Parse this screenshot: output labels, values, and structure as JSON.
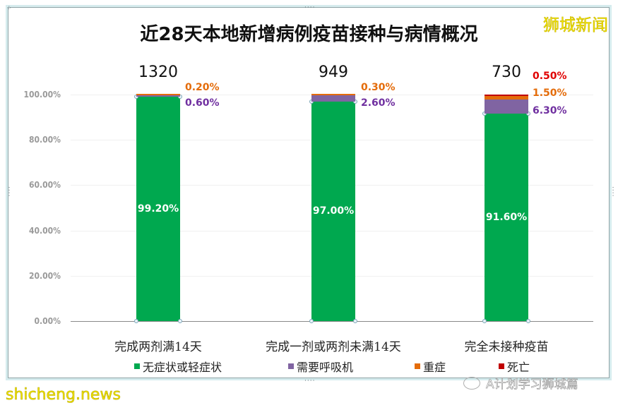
{
  "header": {
    "title": "近28天本地新增病例疫苗接种与病情概况",
    "brand": "狮城新闻"
  },
  "watermarks": {
    "bottom_left": "shicheng.news",
    "bottom_right": "A计划学习狮城篇"
  },
  "colors": {
    "asymptomatic_mild": "#00a84f",
    "ventilator": "#8064a2",
    "severe": "#e46c0a",
    "death": "#c00000",
    "axis_text": "#9a9a9a",
    "label_severe": "#e46c0a",
    "label_ventilator": "#7030a0",
    "label_death": "#e00000"
  },
  "chart_data": {
    "type": "bar",
    "stacked": true,
    "percent_stacked": true,
    "title": "近28天本地新增病例疫苗接种与病情概况",
    "xlabel": "",
    "ylabel": "",
    "ylim": [
      0,
      100
    ],
    "yticks": [
      "0.00%",
      "20.00%",
      "40.00%",
      "60.00%",
      "80.00%",
      "100.00%"
    ],
    "grid": true,
    "legend_position": "bottom",
    "categories": [
      "完成两剂满14天",
      "完成一剂或两剂未满14天",
      "完全未接种疫苗"
    ],
    "totals": [
      "1320",
      "949",
      "730"
    ],
    "series": [
      {
        "name": "无症状或轻症状",
        "values": [
          99.2,
          97.0,
          91.6
        ],
        "labels": [
          "99.20%",
          "97.00%",
          "91.60%"
        ]
      },
      {
        "name": "需要呼吸机",
        "values": [
          0.6,
          2.6,
          6.3
        ],
        "labels": [
          "0.60%",
          "2.60%",
          "6.30%"
        ]
      },
      {
        "name": "重症",
        "values": [
          0.2,
          0.3,
          1.5
        ],
        "labels": [
          "0.20%",
          "0.30%",
          "1.50%"
        ]
      },
      {
        "name": "死亡",
        "values": [
          0.0,
          0.0,
          0.5
        ],
        "labels": [
          "",
          "",
          "0.50%"
        ]
      }
    ]
  }
}
